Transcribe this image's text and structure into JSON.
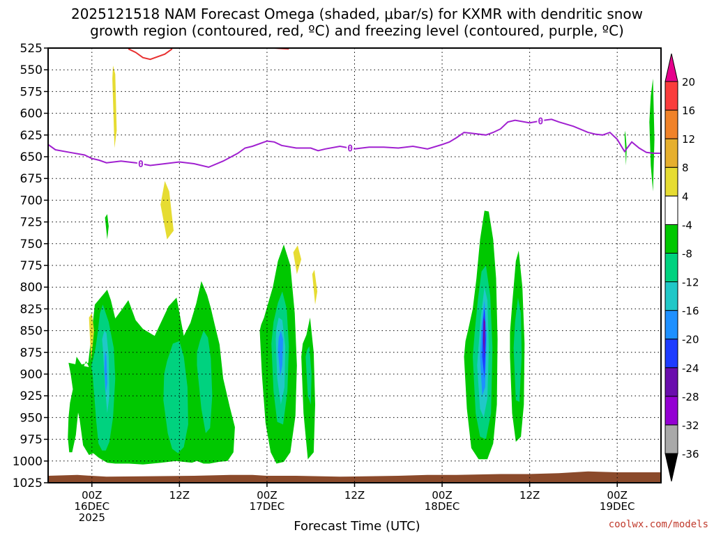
{
  "title_line1": "2025121518 NAM Forecast Omega (shaded, μbar/s) for KXMR with dendritic snow",
  "title_line2": "growth region (contoured, red, ºC) and freezing level (contoured, purple, ºC)",
  "credit": "coolwx.com/models",
  "chart_data": {
    "type": "heatmap",
    "xlabel": "Forecast Time (UTC)",
    "ylabel": "",
    "x_unit": "hours from 2025-12-15 18Z",
    "xlim": [
      0,
      84
    ],
    "ylim": [
      1025,
      525
    ],
    "y_ticks": [
      525,
      550,
      575,
      600,
      625,
      650,
      675,
      700,
      725,
      750,
      775,
      800,
      825,
      850,
      875,
      900,
      925,
      950,
      975,
      1000,
      1025
    ],
    "x_ticks": [
      {
        "x": 6,
        "lines": [
          "00Z",
          "16DEC",
          "2025"
        ]
      },
      {
        "x": 18,
        "lines": [
          "12Z"
        ]
      },
      {
        "x": 30,
        "lines": [
          "00Z",
          "17DEC"
        ]
      },
      {
        "x": 42,
        "lines": [
          "12Z"
        ]
      },
      {
        "x": 54,
        "lines": [
          "00Z",
          "18DEC"
        ]
      },
      {
        "x": 66,
        "lines": [
          "12Z"
        ]
      },
      {
        "x": 78,
        "lines": [
          "00Z",
          "19DEC"
        ]
      }
    ],
    "colorbar": {
      "levels": [
        -36,
        -32,
        -28,
        -24,
        -20,
        -16,
        -12,
        -8,
        -4,
        4,
        8,
        12,
        16,
        20
      ],
      "colors": [
        "#000000",
        "#a9a9a9",
        "#9400d3",
        "#6a0dad",
        "#1e3cff",
        "#1e90ff",
        "#20c8c8",
        "#00d27f",
        "#00c800",
        "#ffffff",
        "#e6dc32",
        "#e6af2d",
        "#f08228",
        "#fa3c3c",
        "#e6008c"
      ]
    },
    "freezing_level": {
      "label": "0",
      "color": "#a020d0",
      "x": [
        0,
        1,
        3,
        5,
        6,
        7,
        8,
        10,
        12,
        14,
        16,
        18,
        20,
        22,
        24,
        26,
        27,
        28,
        30,
        31,
        32,
        34,
        36,
        37,
        38,
        40,
        42,
        44,
        46,
        48,
        50,
        52,
        54,
        55,
        56,
        57,
        58,
        60,
        61,
        62,
        63,
        64,
        66,
        68,
        69,
        70,
        72,
        74,
        75,
        76,
        77,
        78,
        79,
        80,
        81,
        82,
        83,
        84
      ],
      "p": [
        636,
        642,
        645,
        648,
        652,
        654,
        657,
        655,
        657,
        660,
        658,
        656,
        658,
        662,
        655,
        646,
        640,
        638,
        632,
        633,
        637,
        640,
        640,
        643,
        641,
        638,
        641,
        639,
        639,
        640,
        638,
        641,
        636,
        633,
        628,
        622,
        623,
        625,
        622,
        618,
        610,
        608,
        611,
        608,
        607,
        610,
        615,
        622,
        624,
        625,
        622,
        630,
        644,
        633,
        640,
        645,
        646,
        646
      ]
    },
    "dgz_contour": {
      "color": "#e83030",
      "x": [
        [
          11,
          12,
          13,
          14,
          16,
          17
        ],
        [
          31,
          33
        ]
      ],
      "p": [
        [
          526,
          530,
          536,
          538,
          532,
          526
        ],
        [
          525,
          526
        ]
      ]
    },
    "omega_regions": [
      {
        "value": -6,
        "x": [
          2.8,
          3.1,
          3.4,
          3.7,
          4.3,
          4.8,
          5.6,
          6.2,
          6.9,
          7.5,
          8.1,
          9.2,
          11.1,
          13,
          15.5,
          17.5,
          19.7,
          20.4,
          21.3,
          22.1,
          23.4,
          24.6,
          25.4,
          25.6,
          24.9,
          24,
          23.5,
          22.8,
          22.3,
          21.8,
          21,
          20.3,
          19.5,
          18.6,
          17.6,
          16.5,
          15.5,
          14.6,
          13,
          12,
          11,
          10,
          9.2,
          8.6,
          8.1,
          7.2,
          6.4,
          5.5,
          4.6,
          3.9,
          3.6,
          3.4,
          3,
          2.8,
          2.7,
          2.9,
          3.3,
          3.8,
          4.1,
          4.4,
          4.8,
          5.2,
          5.6
        ],
        "p": [
          887,
          900,
          918,
          930,
          951,
          982,
          993,
          991,
          996,
          999,
          1002,
          1003,
          1003,
          1004,
          1002,
          1000,
          1002,
          1000,
          1003,
          1003,
          1001,
          1000,
          990,
          961,
          938,
          905,
          866,
          842,
          824,
          809,
          793,
          819,
          841,
          856,
          812,
          822,
          840,
          856,
          848,
          838,
          815,
          827,
          836,
          815,
          803,
          812,
          820,
          887,
          889,
          880,
          895,
          917,
          933,
          950,
          973,
          990,
          990,
          970,
          945,
          915,
          893,
          885,
          892
        ]
      },
      {
        "value": -10,
        "x": [
          6.1,
          6.6,
          6.9,
          7.4,
          7.9,
          8.4,
          8.9,
          9.2,
          9.0,
          8.3,
          7.5,
          7.1,
          6.8,
          6.5,
          6.2,
          5.9
        ],
        "p": [
          900,
          955,
          980,
          988,
          988,
          978,
          950,
          905,
          870,
          840,
          820,
          830,
          852,
          870,
          882,
          891
        ]
      },
      {
        "value": -10,
        "x": [
          15.8,
          16.4,
          17.0,
          17.8,
          18.6,
          19.2,
          19.1,
          18.6,
          18.0,
          17.1,
          16.3,
          15.9
        ],
        "p": [
          930,
          968,
          986,
          991,
          984,
          958,
          915,
          880,
          862,
          865,
          885,
          900
        ]
      },
      {
        "value": -10,
        "x": [
          20.4,
          21.0,
          21.6,
          22.2,
          22.5,
          22.3,
          21.9,
          21.3,
          20.8,
          20.4
        ],
        "p": [
          890,
          940,
          968,
          962,
          925,
          882,
          858,
          850,
          862,
          875
        ]
      },
      {
        "value": -14,
        "x": [
          7.5,
          7.8,
          8.1,
          8.4,
          8.3,
          8.0,
          7.7,
          7.4
        ],
        "p": [
          870,
          915,
          945,
          925,
          880,
          853,
          850,
          860
        ]
      },
      {
        "value": -18,
        "x": [
          7.7,
          7.9,
          8.1,
          8.0,
          7.8
        ],
        "p": [
          895,
          922,
          910,
          880,
          873
        ]
      },
      {
        "value": -6,
        "x": [
          29.0,
          29.3,
          29.8,
          30.5,
          31.3,
          32.3,
          33.2,
          33.9,
          34.1,
          33.8,
          33.2,
          32.3,
          31.5,
          30.8,
          30.1,
          29.6,
          29.2
        ],
        "p": [
          850,
          900,
          956,
          990,
          1003,
          1001,
          990,
          948,
          890,
          830,
          775,
          751,
          770,
          800,
          820,
          835,
          843
        ]
      },
      {
        "value": -10,
        "x": [
          30.6,
          30.9,
          31.4,
          32.2,
          32.8,
          33.0,
          32.7,
          32.1,
          31.5,
          30.9
        ],
        "p": [
          865,
          920,
          955,
          958,
          920,
          868,
          825,
          805,
          818,
          840
        ]
      },
      {
        "value": -14,
        "x": [
          31.2,
          31.4,
          31.9,
          32.4,
          32.5,
          32.1,
          31.6,
          31.3
        ],
        "p": [
          860,
          905,
          935,
          915,
          868,
          838,
          835,
          847
        ]
      },
      {
        "value": -18,
        "x": [
          31.5,
          31.8,
          32.1,
          32.2,
          31.9,
          31.6
        ],
        "p": [
          872,
          903,
          890,
          860,
          850,
          858
        ]
      },
      {
        "value": -6,
        "x": [
          34.7,
          35.0,
          35.6,
          36.4,
          36.6,
          36.4,
          35.9,
          35.4,
          34.9
        ],
        "p": [
          880,
          945,
          998,
          990,
          935,
          875,
          835,
          855,
          865
        ]
      },
      {
        "value": -10,
        "x": [
          35.3,
          35.6,
          36.0,
          36.1,
          35.8,
          35.5
        ],
        "p": [
          880,
          925,
          935,
          900,
          868,
          872
        ]
      },
      {
        "value": -6,
        "x": [
          57.0,
          57.4,
          58.0,
          59.0,
          60.2,
          61.0,
          61.5,
          61.6,
          61.4,
          61.0,
          60.4,
          59.8,
          59.2,
          58.7,
          58.2,
          57.6,
          57.2
        ],
        "p": [
          880,
          940,
          985,
          998,
          998,
          980,
          935,
          860,
          790,
          745,
          713,
          712,
          745,
          790,
          825,
          848,
          862
        ]
      },
      {
        "value": -10,
        "x": [
          58.2,
          58.6,
          59.2,
          60.0,
          60.7,
          60.9,
          60.6,
          60.0,
          59.4,
          58.9,
          58.5
        ],
        "p": [
          880,
          945,
          972,
          975,
          945,
          870,
          810,
          775,
          782,
          815,
          848
        ]
      },
      {
        "value": -14,
        "x": [
          58.8,
          59.2,
          59.7,
          60.2,
          60.4,
          60.2,
          59.8,
          59.3
        ],
        "p": [
          890,
          940,
          950,
          928,
          870,
          815,
          800,
          835
        ]
      },
      {
        "value": -18,
        "x": [
          59.2,
          59.5,
          59.9,
          60.1,
          59.8,
          59.4
        ],
        "p": [
          880,
          925,
          915,
          855,
          815,
          845
        ]
      },
      {
        "value": -22,
        "x": [
          59.5,
          59.8,
          60.0,
          59.8,
          59.6
        ],
        "p": [
          880,
          905,
          860,
          823,
          840
        ]
      },
      {
        "value": -26,
        "x": [
          59.6,
          59.8,
          59.9,
          59.7
        ],
        "p": [
          860,
          882,
          840,
          835
        ]
      },
      {
        "value": -6,
        "x": [
          63.3,
          63.6,
          64.1,
          64.8,
          65.2,
          65.3,
          65.0,
          64.5,
          64.1,
          63.6,
          63.3
        ],
        "p": [
          880,
          945,
          978,
          972,
          935,
          865,
          800,
          758,
          770,
          820,
          852
        ]
      },
      {
        "value": -10,
        "x": [
          63.8,
          64.1,
          64.6,
          64.9,
          64.8,
          64.4,
          64.0
        ],
        "p": [
          870,
          930,
          932,
          880,
          830,
          812,
          840
        ]
      },
      {
        "value": -6,
        "x": [
          82.4,
          82.6,
          82.9,
          83.1,
          82.9,
          82.6
        ],
        "p": [
          610,
          660,
          690,
          630,
          560,
          580
        ]
      },
      {
        "value": -6,
        "x": [
          79.0,
          79.2,
          79.3,
          79.1
        ],
        "p": [
          625,
          660,
          640,
          620
        ]
      },
      {
        "value": -6,
        "x": [
          7.8,
          8.1,
          8.3,
          8.1
        ],
        "p": [
          720,
          745,
          730,
          716
        ]
      },
      {
        "value": 6,
        "x": [
          8.8,
          9.1,
          9.4,
          9.2,
          8.9
        ],
        "p": [
          560,
          640,
          620,
          555,
          545
        ]
      },
      {
        "value": 6,
        "x": [
          15.4,
          16.3,
          17.2,
          16.6,
          16.0
        ],
        "p": [
          705,
          745,
          735,
          690,
          678
        ]
      },
      {
        "value": 6,
        "x": [
          5.6,
          5.9,
          6.3,
          6.0
        ],
        "p": [
          835,
          885,
          850,
          830
        ]
      },
      {
        "value": 6,
        "x": [
          33.6,
          34.1,
          34.7,
          34.2
        ],
        "p": [
          760,
          785,
          768,
          752
        ]
      },
      {
        "value": 6,
        "x": [
          36.2,
          36.6,
          36.9,
          36.5
        ],
        "p": [
          785,
          820,
          805,
          780
        ]
      }
    ],
    "surface": {
      "color": "#8b4a2b",
      "x": [
        0,
        4,
        8,
        20,
        25,
        28,
        30,
        34,
        40,
        48,
        52,
        56,
        62,
        66,
        70,
        74,
        78,
        84
      ],
      "p": [
        1017,
        1016,
        1018,
        1017,
        1016,
        1016,
        1017,
        1017,
        1018,
        1017,
        1016,
        1016,
        1015,
        1015,
        1014,
        1012,
        1013,
        1013
      ]
    }
  }
}
